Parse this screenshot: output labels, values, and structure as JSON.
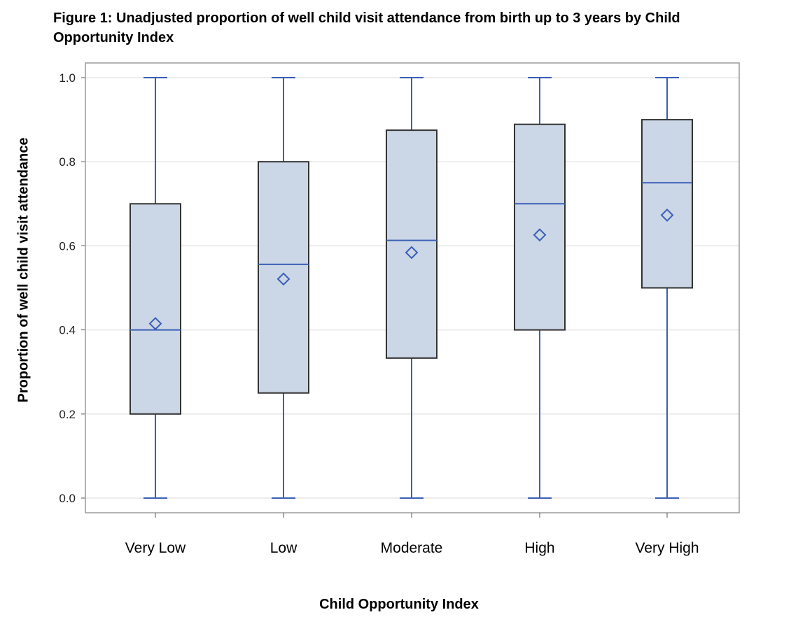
{
  "chart_data": {
    "type": "box",
    "title_line1": "Figure 1: Unadjusted proportion of well child visit attendance from birth up to 3 years by Child",
    "title_line2": "Opportunity Index",
    "xlabel": "Child Opportunity Index",
    "ylabel": "Proportion of well child visit attendance",
    "ylim": [
      0.0,
      1.0
    ],
    "yticks": [
      "0.0",
      "0.2",
      "0.4",
      "0.6",
      "0.8",
      "1.0"
    ],
    "grid": true,
    "categories": [
      "Very Low",
      "Low",
      "Moderate",
      "High",
      "Very High"
    ],
    "boxes": [
      {
        "min": 0.0,
        "q1": 0.2,
        "median": 0.4,
        "q3": 0.7,
        "max": 1.0,
        "mean": 0.415
      },
      {
        "min": 0.0,
        "q1": 0.25,
        "median": 0.556,
        "q3": 0.8,
        "max": 1.0,
        "mean": 0.521
      },
      {
        "min": 0.0,
        "q1": 0.333,
        "median": 0.613,
        "q3": 0.875,
        "max": 1.0,
        "mean": 0.584
      },
      {
        "min": 0.0,
        "q1": 0.4,
        "median": 0.7,
        "q3": 0.889,
        "max": 1.0,
        "mean": 0.626
      },
      {
        "min": 0.0,
        "q1": 0.5,
        "median": 0.75,
        "q3": 0.9,
        "max": 1.0,
        "mean": 0.673
      }
    ],
    "colors": {
      "box_fill": "#cbd6e6",
      "box_edge": "#333333",
      "whisker": "#3a5fb5",
      "grid": "#e6e6e6",
      "frame": "#9a9a9a"
    }
  }
}
